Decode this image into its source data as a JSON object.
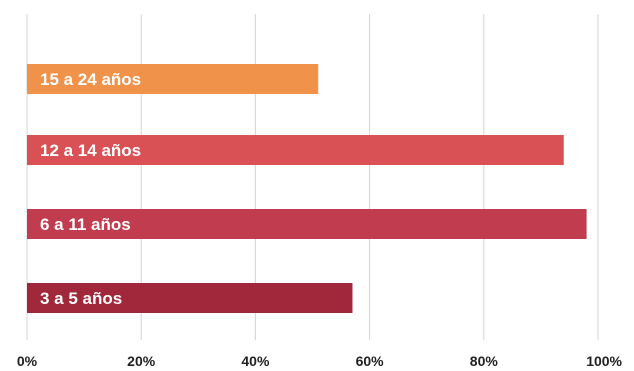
{
  "chart_data": {
    "type": "bar",
    "orientation": "horizontal",
    "categories": [
      "15 a 24 años",
      "12 a 14 años",
      "6 a 11 años",
      "3 a 5 años"
    ],
    "values": [
      51,
      94,
      98,
      57
    ],
    "colors": [
      "#f0924a",
      "#d95055",
      "#c13c4f",
      "#a0283a"
    ],
    "x_ticks": [
      "0%",
      "20%",
      "40%",
      "60%",
      "80%",
      "100%"
    ],
    "xlim": [
      0,
      100
    ],
    "grid": true,
    "legend": "none",
    "title": "",
    "xlabel": "",
    "ylabel": ""
  }
}
